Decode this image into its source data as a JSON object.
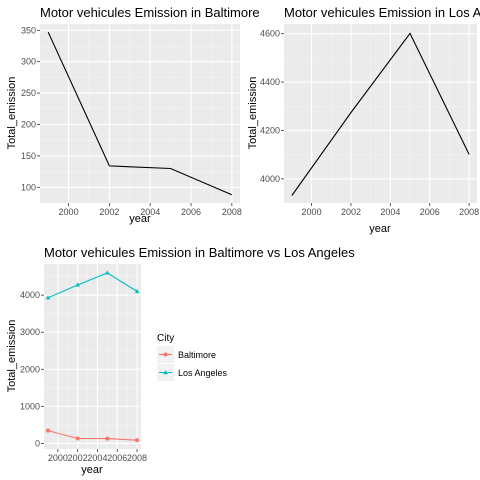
{
  "chart_data": [
    {
      "type": "line",
      "title": "Motor vehicules Emission in Baltimore",
      "xlabel": "year",
      "ylabel": "Total_emission",
      "x": [
        1999,
        2002,
        2005,
        2008
      ],
      "series": [
        {
          "values": [
            347,
            134,
            130,
            88
          ],
          "color": "#000000"
        }
      ],
      "xlim": [
        1998.6,
        2008.4
      ],
      "ylim": [
        75,
        360
      ],
      "xticks": [
        2000,
        2002,
        2004,
        2006,
        2008
      ],
      "yticks": [
        100,
        150,
        200,
        250,
        300,
        350
      ],
      "grid": true
    },
    {
      "type": "line",
      "title": "Motor vehicules Emission in Los Angeles",
      "xlabel": "year",
      "ylabel": "Total_emission",
      "x": [
        1999,
        2002,
        2005,
        2008
      ],
      "series": [
        {
          "values": [
            3931,
            4274,
            4601,
            4101
          ],
          "color": "#000000"
        }
      ],
      "xlim": [
        1998.6,
        2008.4
      ],
      "ylim": [
        3900,
        4640
      ],
      "xticks": [
        2000,
        2002,
        2004,
        2006,
        2008
      ],
      "yticks": [
        4000,
        4200,
        4400,
        4600
      ],
      "grid": true
    },
    {
      "type": "line",
      "title": "Motor vehicules Emission in Baltimore vs Los Angeles",
      "xlabel": "year",
      "ylabel": "Total_emission",
      "x": [
        1999,
        2002,
        2005,
        2008
      ],
      "series": [
        {
          "name": "Baltimore",
          "values": [
            347,
            134,
            130,
            88
          ],
          "color": "#F8766D",
          "marker": "circle"
        },
        {
          "name": "Los Angeles",
          "values": [
            3931,
            4274,
            4601,
            4101
          ],
          "color": "#00BFC4",
          "marker": "triangle"
        }
      ],
      "xlim": [
        1998.6,
        2008.4
      ],
      "ylim": [
        -150,
        4840
      ],
      "xticks": [
        2000,
        2002,
        2004,
        2006,
        2008
      ],
      "yticks": [
        0,
        1000,
        2000,
        3000,
        4000
      ],
      "legend": {
        "title": "City",
        "position": "right"
      },
      "grid": true
    }
  ]
}
